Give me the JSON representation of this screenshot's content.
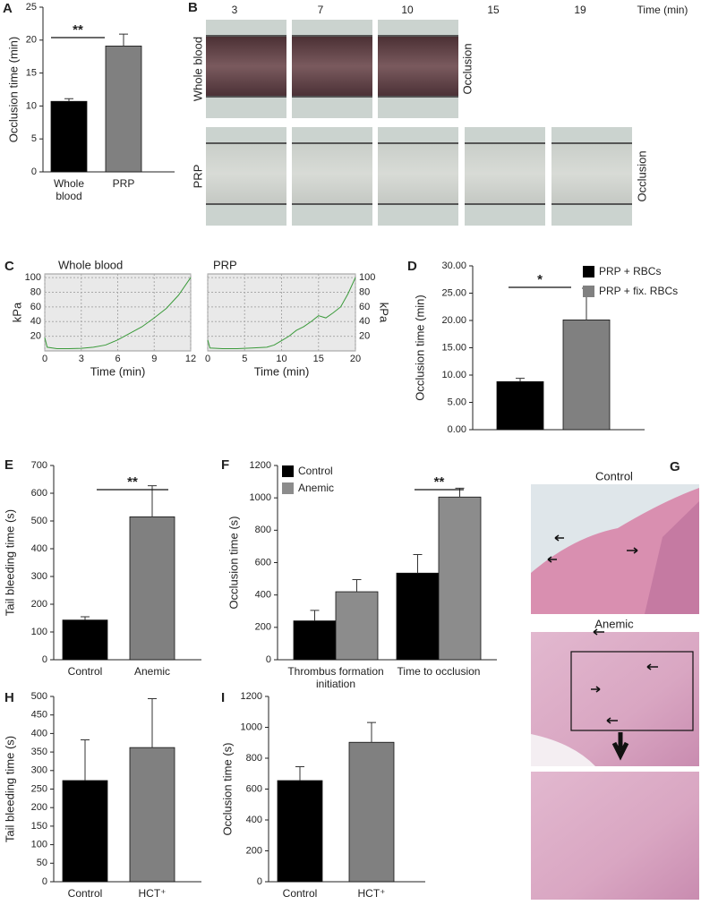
{
  "chart_data": [
    {
      "type": "bar",
      "panel": "A",
      "ylabel": "Occlusion time (min)",
      "categories": [
        "Whole blood",
        "PRP"
      ],
      "values": [
        10.7,
        19.1
      ],
      "errors": [
        0.4,
        1.8
      ],
      "colors": [
        "#000000",
        "#808080"
      ],
      "ylim": [
        0,
        25
      ],
      "yticks": [
        0,
        5,
        10,
        15,
        20,
        25
      ],
      "significance": "**"
    },
    {
      "type": "line",
      "panel": "C",
      "title": "Whole blood",
      "ylabel": "kPa",
      "xlabel": "Time (min)",
      "x": [
        0,
        0.2,
        1,
        2,
        3,
        4,
        5,
        6,
        7,
        8,
        9,
        10,
        11,
        12
      ],
      "values": [
        18,
        5,
        3,
        3,
        3.5,
        5,
        8,
        15,
        24,
        33,
        45,
        58,
        76,
        100
      ],
      "color": "#3a9a3a",
      "xlim": [
        0,
        12
      ],
      "xticks": [
        0,
        3,
        6,
        9,
        12
      ],
      "ylim": [
        0,
        105
      ],
      "yticks": [
        20,
        40,
        60,
        80,
        100
      ],
      "grid": true
    },
    {
      "type": "line",
      "title": "PRP",
      "ylabel": "kPa",
      "xlabel": "Time (min)",
      "x": [
        0,
        0.3,
        2,
        4,
        6,
        8,
        9,
        10,
        11,
        12,
        13,
        14,
        15,
        16,
        17,
        18,
        19,
        20
      ],
      "values": [
        15,
        4,
        3,
        3,
        4,
        5,
        8,
        14,
        20,
        28,
        33,
        40,
        48,
        45,
        52,
        60,
        78,
        100
      ],
      "color": "#3a9a3a",
      "xlim": [
        0,
        20
      ],
      "xticks": [
        0,
        5,
        10,
        15,
        20
      ],
      "ylim": [
        0,
        105
      ],
      "yticks": [
        20,
        40,
        60,
        80,
        100
      ],
      "grid": true
    },
    {
      "type": "bar",
      "panel": "D",
      "ylabel": "Occlusion time (min)",
      "series": [
        {
          "name": "PRP + RBCs",
          "color": "#000000",
          "values": [
            8.8
          ],
          "errors": [
            0.6
          ]
        },
        {
          "name": "PRP + fix. RBCs",
          "color": "#808080",
          "values": [
            20.1
          ],
          "errors": [
            5.8
          ]
        }
      ],
      "ylim": [
        0,
        30
      ],
      "yticks": [
        {
          "value": 0,
          "label": "0.00"
        },
        {
          "value": 5,
          "label": "5.00"
        },
        {
          "value": 10,
          "label": "10.00"
        },
        {
          "value": 15,
          "label": "15.00"
        },
        {
          "value": 20,
          "label": "20.00"
        },
        {
          "value": 25,
          "label": "25.00"
        },
        {
          "value": 30,
          "label": "30.00"
        }
      ],
      "significance": "*"
    },
    {
      "type": "bar",
      "panel": "E",
      "ylabel": "Tail bleeding time (s)",
      "categories": [
        "Control",
        "Anemic"
      ],
      "values": [
        143,
        515
      ],
      "errors": [
        12,
        112
      ],
      "colors": [
        "#000000",
        "#808080"
      ],
      "ylim": [
        0,
        700
      ],
      "yticks": [
        0,
        100,
        200,
        300,
        400,
        500,
        600,
        700
      ],
      "significance": "**"
    },
    {
      "type": "bar",
      "panel": "F",
      "ylabel": "Occlusion time (s)",
      "categories": [
        "Thrombus formation initiation",
        "Time to occlusion"
      ],
      "series": [
        {
          "name": "Control",
          "color": "#000000",
          "values": [
            240,
            535
          ],
          "errors": [
            65,
            115
          ]
        },
        {
          "name": "Anemic",
          "color": "#8c8c8c",
          "values": [
            420,
            1005
          ],
          "errors": [
            75,
            55
          ]
        }
      ],
      "ylim": [
        0,
        1200
      ],
      "yticks": [
        0,
        200,
        400,
        600,
        800,
        1000,
        1200
      ],
      "significance": "**"
    },
    {
      "type": "bar",
      "panel": "H",
      "ylabel": "Tail bleeding time (s)",
      "categories": [
        "Control",
        "HCT⁺"
      ],
      "values": [
        273,
        362
      ],
      "errors": [
        110,
        132
      ],
      "colors": [
        "#000000",
        "#808080"
      ],
      "ylim": [
        0,
        500
      ],
      "yticks": [
        0,
        50,
        100,
        150,
        200,
        250,
        300,
        350,
        400,
        450,
        500
      ]
    },
    {
      "type": "bar",
      "panel": "I",
      "ylabel": "Occlusion time (s)",
      "categories": [
        "Control",
        "HCT⁺"
      ],
      "values": [
        655,
        903
      ],
      "errors": [
        90,
        128
      ],
      "colors": [
        "#000000",
        "#808080"
      ],
      "ylim": [
        0,
        1200
      ],
      "yticks": [
        0,
        200,
        400,
        600,
        800,
        1000,
        1200
      ]
    }
  ],
  "panel_b": {
    "panel": "B",
    "times": [
      3,
      7,
      10,
      15,
      19
    ],
    "time_label": "Time (min)",
    "rows": [
      {
        "label": "Whole blood",
        "end": "Occlusion"
      },
      {
        "label": "PRP",
        "end": "Occlusion"
      }
    ]
  },
  "panel_g": {
    "panel": "G",
    "images": [
      "Control",
      "Anemic"
    ]
  }
}
